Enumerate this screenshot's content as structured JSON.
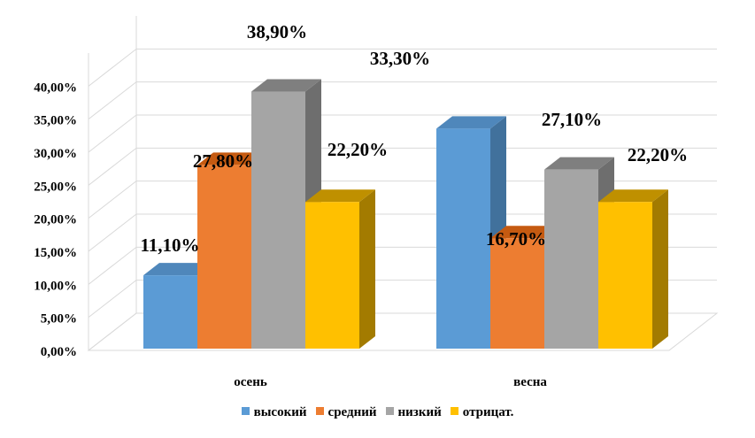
{
  "chart_data": {
    "type": "bar",
    "title": "",
    "xlabel": "",
    "ylabel": "",
    "categories": [
      "осень",
      "весна"
    ],
    "series": [
      {
        "name": "высокий",
        "values": [
          11.1,
          33.3
        ],
        "labels": [
          "11,10%",
          "33,30%"
        ],
        "color": "#5B9BD5",
        "side_color": "#41719C",
        "top_color": "#4F87BB"
      },
      {
        "name": "средний",
        "values": [
          27.8,
          16.7
        ],
        "labels": [
          "27,80%",
          "16,70%"
        ],
        "color": "#ED7D31",
        "side_color": "#C55A11",
        "top_color": "#C55A11"
      },
      {
        "name": "низкий",
        "values": [
          38.9,
          27.1
        ],
        "labels": [
          "38,90%",
          "27,10%"
        ],
        "color": "#A5A5A5",
        "side_color": "#6E6E6E",
        "top_color": "#7F7F7F"
      },
      {
        "name": "отрицат.",
        "values": [
          22.2,
          22.2
        ],
        "labels": [
          "22,20%",
          "22,20%"
        ],
        "color": "#FFC000",
        "side_color": "#A37B00",
        "top_color": "#BF9000"
      }
    ],
    "ylim": [
      0,
      45
    ],
    "yticks": [
      0,
      5,
      10,
      15,
      20,
      25,
      30,
      35,
      40
    ],
    "ytick_labels": [
      "0,00%",
      "5,00%",
      "10,00%",
      "15,00%",
      "20,00%",
      "25,00%",
      "30,00%",
      "35,00%",
      "40,00%"
    ],
    "grid": true,
    "legend_position": "bottom",
    "style": "3d-clustered-column"
  }
}
